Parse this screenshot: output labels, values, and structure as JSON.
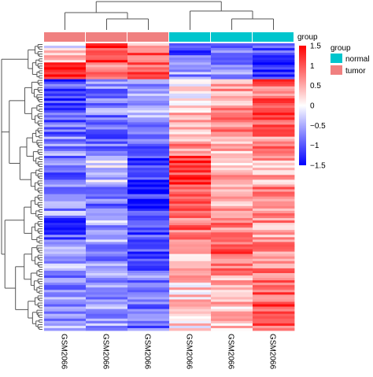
{
  "chart_data": {
    "type": "heatmap",
    "columns": [
      "GSM2066",
      "GSM2066",
      "GSM2066",
      "GSM2066",
      "GSM2066",
      "GSM2066"
    ],
    "groups": [
      "tumor",
      "tumor",
      "tumor",
      "normal",
      "normal",
      "normal"
    ],
    "group_annotation_label": "group",
    "legend": {
      "title": "group",
      "entries": [
        {
          "label": "normal",
          "color": "#00C5CD"
        },
        {
          "label": "tumor",
          "color": "#F08080"
        }
      ]
    },
    "color_scale": {
      "min": -1.5,
      "max": 1.5,
      "ticks": [
        "1.5",
        "1",
        "0.5",
        "0",
        "−0.5",
        "−1",
        "−1.5"
      ],
      "tick_values": [
        1.5,
        1,
        0.5,
        0,
        -0.5,
        -1,
        -1.5
      ],
      "low_color": "#0000FF",
      "mid_color": "#FFFFFF",
      "high_color": "#FF0000"
    },
    "row_count": 120,
    "row_blocks": [
      {
        "count": 3,
        "values": [
          0.0,
          1.2,
          0.6,
          -0.8,
          -0.9,
          -1.0
        ]
      },
      {
        "count": 5,
        "values": [
          0.5,
          1.1,
          0.9,
          -1.0,
          -0.9,
          -1.1
        ]
      },
      {
        "count": 7,
        "values": [
          1.3,
          0.8,
          1.0,
          -0.6,
          -0.7,
          -1.3
        ]
      },
      {
        "count": 14,
        "values": [
          -1.0,
          -0.7,
          -0.5,
          0.1,
          0.6,
          0.9
        ]
      },
      {
        "count": 10,
        "values": [
          -0.9,
          -0.8,
          -0.6,
          0.3,
          0.7,
          1.1
        ]
      },
      {
        "count": 8,
        "values": [
          -0.7,
          -0.9,
          -0.9,
          0.6,
          0.4,
          0.7
        ]
      },
      {
        "count": 12,
        "values": [
          -0.8,
          -0.3,
          -1.1,
          1.2,
          0.4,
          0.5
        ]
      },
      {
        "count": 14,
        "values": [
          -0.6,
          -0.8,
          -1.2,
          1.0,
          0.6,
          0.7
        ]
      },
      {
        "count": 12,
        "values": [
          -1.0,
          -0.5,
          -1.0,
          0.8,
          0.8,
          0.6
        ]
      },
      {
        "count": 10,
        "values": [
          -0.5,
          -0.7,
          -1.0,
          0.4,
          0.9,
          0.7
        ]
      },
      {
        "count": 14,
        "values": [
          -0.7,
          -0.6,
          -0.8,
          0.3,
          0.5,
          0.9
        ]
      },
      {
        "count": 11,
        "values": [
          -0.6,
          -0.6,
          -0.9,
          0.2,
          0.4,
          1.0
        ]
      }
    ]
  }
}
